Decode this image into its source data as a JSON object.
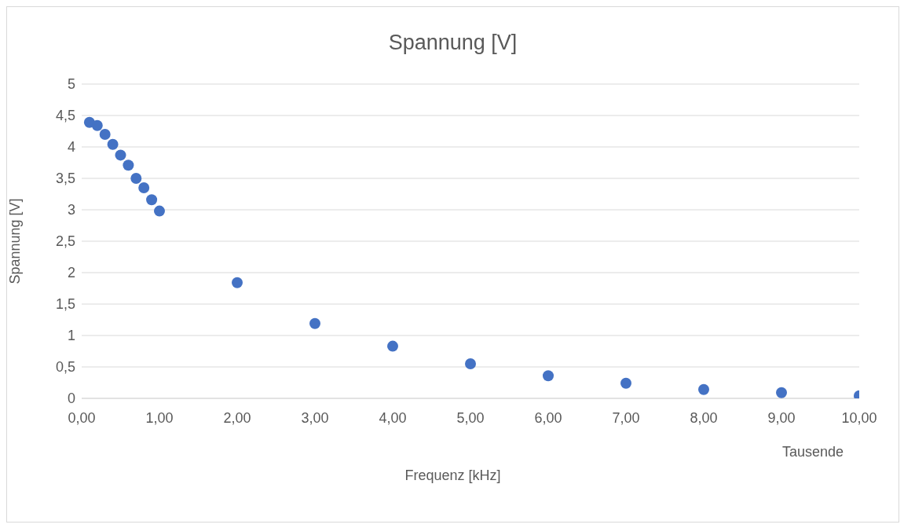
{
  "chart_data": {
    "type": "scatter",
    "title": "Spannung [V]",
    "xlabel": "Frequenz [kHz]",
    "ylabel": "Spannung [V]",
    "annotations": [
      "Tausende"
    ],
    "x": [
      0.1,
      0.2,
      0.3,
      0.4,
      0.5,
      0.6,
      0.7,
      0.8,
      0.9,
      1,
      2,
      3,
      4,
      5,
      6,
      7,
      8,
      9,
      10
    ],
    "series": [
      {
        "color": "#4472c4",
        "values": [
          4.39,
          4.34,
          4.2,
          4.04,
          3.87,
          3.71,
          3.5,
          3.35,
          3.16,
          2.98,
          1.84,
          1.19,
          0.83,
          0.55,
          0.36,
          0.24,
          0.14,
          0.09,
          0.04
        ]
      }
    ],
    "xlim": [
      0,
      10
    ],
    "xticks": [
      {
        "value": 0,
        "label": "0,00"
      },
      {
        "value": 1,
        "label": "1,00"
      },
      {
        "value": 2,
        "label": "2,00"
      },
      {
        "value": 3,
        "label": "3,00"
      },
      {
        "value": 4,
        "label": "4,00"
      },
      {
        "value": 5,
        "label": "5,00"
      },
      {
        "value": 6,
        "label": "6,00"
      },
      {
        "value": 7,
        "label": "7,00"
      },
      {
        "value": 8,
        "label": "8,00"
      },
      {
        "value": 9,
        "label": "9,00"
      },
      {
        "value": 10,
        "label": "10,00"
      }
    ],
    "ylim": [
      0,
      5
    ],
    "yticks": [
      0,
      {
        "value": 0.5,
        "label": "0,5"
      },
      1,
      {
        "value": 1.5,
        "label": "1,5"
      },
      2,
      {
        "value": 2.5,
        "label": "2,5"
      },
      3,
      {
        "value": 3.5,
        "label": "3,5"
      },
      4,
      {
        "value": 4.5,
        "label": "4,5"
      },
      5
    ],
    "grid": "y",
    "legend": false,
    "marker": "circle"
  }
}
